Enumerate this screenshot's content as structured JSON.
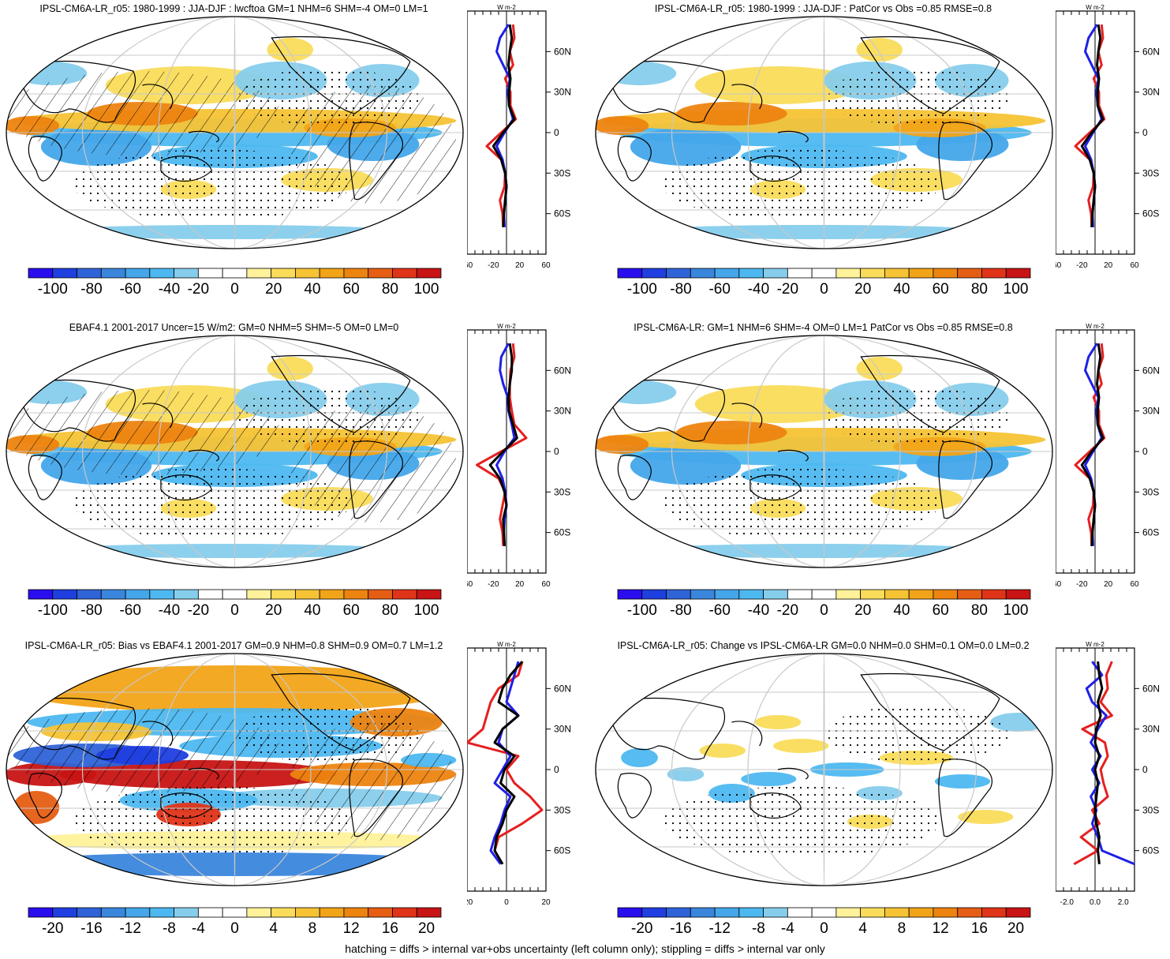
{
  "colors": {
    "palette": [
      "#2a0ef0",
      "#1f3fe0",
      "#2f63d8",
      "#3a86dc",
      "#45a6ea",
      "#4db8f0",
      "#86cdec",
      "#ffffff",
      "#ffffff",
      "#fff29a",
      "#fadc5a",
      "#f6c335",
      "#f2a418",
      "#ed8410",
      "#e55e14",
      "#e03418",
      "#c81414"
    ],
    "model_line": "#000000",
    "obs_line": "#1f1fe6",
    "change_line": "#e61f1f"
  },
  "panels": [
    {
      "title": "IPSL-CM6A-LR_r05: 1980-1999 : JJA-DJF : lwcftoa GM=1 NHM=6 SHM=-4 OM=0 LM=1",
      "map_scheme": "model",
      "hatched": true,
      "cb_labels": [
        "-100",
        "-80",
        "-60",
        "-40",
        "-20",
        "0",
        "20",
        "40",
        "60",
        "80",
        "100"
      ],
      "zonal_ticks": [
        "-60",
        "-20",
        "20",
        "60"
      ],
      "zonal_unit": "W m-2",
      "lat_labels": [
        "60N",
        "30N",
        "0",
        "30S",
        "60S"
      ]
    },
    {
      "title": "IPSL-CM6A-LR_r05: 1980-1999 : JJA-DJF : PatCor vs Obs =0.85 RMSE=0.8",
      "map_scheme": "model",
      "hatched": false,
      "cb_labels": [
        "-100",
        "-80",
        "-60",
        "-40",
        "-20",
        "0",
        "20",
        "40",
        "60",
        "80",
        "100"
      ],
      "zonal_ticks": [
        "-60",
        "-20",
        "20",
        "60"
      ],
      "zonal_unit": "W m-2",
      "lat_labels": [
        "60N",
        "30N",
        "0",
        "30S",
        "60S"
      ]
    },
    {
      "title": "EBAF4.1 2001-2017 Uncer=15 W/m2: GM=0 NHM=5 SHM=-5 OM=0 LM=0",
      "map_scheme": "obs",
      "hatched": true,
      "cb_labels": [
        "-100",
        "-80",
        "-60",
        "-40",
        "-20",
        "0",
        "20",
        "40",
        "60",
        "80",
        "100"
      ],
      "zonal_ticks": [
        "-60",
        "-20",
        "20",
        "60"
      ],
      "zonal_unit": "W m-2",
      "lat_labels": [
        "60N",
        "30N",
        "0",
        "30S",
        "60S"
      ]
    },
    {
      "title": "IPSL-CM6A-LR: GM=1 NHM=6 SHM=-4 OM=0 LM=1 PatCor vs Obs =0.85 RMSE=0.8",
      "map_scheme": "model",
      "hatched": false,
      "cb_labels": [
        "-100",
        "-80",
        "-60",
        "-40",
        "-20",
        "0",
        "20",
        "40",
        "60",
        "80",
        "100"
      ],
      "zonal_ticks": [
        "-60",
        "-20",
        "20",
        "60"
      ],
      "zonal_unit": "W m-2",
      "lat_labels": [
        "60N",
        "30N",
        "0",
        "30S",
        "60S"
      ]
    },
    {
      "title": "IPSL-CM6A-LR_r05: Bias vs EBAF4.1 2001-2017 GM=0.9 NHM=0.8 SHM=0.9 OM=0.7 LM=1.2",
      "map_scheme": "bias",
      "hatched": true,
      "cb_labels": [
        "-20",
        "-16",
        "-12",
        "-8",
        "-4",
        "0",
        "4",
        "8",
        "12",
        "16",
        "20"
      ],
      "zonal_ticks": [
        "-20",
        "0",
        "20"
      ],
      "zonal_unit": "W m-2",
      "lat_labels": [
        "60N",
        "30N",
        "0",
        "30S",
        "60S"
      ]
    },
    {
      "title": "IPSL-CM6A-LR_r05: Change vs IPSL-CM6A-LR GM=0.0 NHM=0.0 SHM=0.1 OM=0.0 LM=0.2",
      "map_scheme": "change",
      "hatched": false,
      "cb_labels": [
        "-20",
        "-16",
        "-12",
        "-8",
        "-4",
        "0",
        "4",
        "8",
        "12",
        "16",
        "20"
      ],
      "zonal_ticks": [
        "-2.0",
        "0.0",
        "2.0"
      ],
      "zonal_unit": "W m-2",
      "lat_labels": [
        "60N",
        "30N",
        "0",
        "30S",
        "60S"
      ]
    }
  ],
  "footer": "hatching = diffs > internal var+obs uncertainty (left column only); stippling = diffs > internal var only",
  "chart_data": [
    {
      "type": "heatmap",
      "title": "IPSL-CM6A-LR_r05: 1980-1999 : JJA-DJF : lwcftoa GM=1 NHM=6 SHM=-4 OM=0 LM=1",
      "colorbar_range": [
        -100,
        100
      ],
      "zonal_mean": {
        "lat": [
          80,
          70,
          60,
          50,
          40,
          30,
          20,
          10,
          0,
          -10,
          -20,
          -30,
          -40,
          -50,
          -60,
          -70
        ],
        "series": [
          {
            "values": [
              5,
              8,
              5,
              3,
              6,
              4,
              4,
              12,
              -5,
              -20,
              -8,
              -2,
              0,
              -2,
              -4,
              -5
            ]
          },
          {
            "values": [
              3,
              -10,
              -15,
              -5,
              5,
              2,
              4,
              10,
              -3,
              -15,
              -6,
              -2,
              0,
              -2,
              -4,
              -3
            ]
          },
          {
            "values": [
              10,
              12,
              5,
              10,
              -2,
              6,
              6,
              14,
              -8,
              -30,
              -8,
              -2,
              -3,
              -10,
              -6,
              -5
            ]
          }
        ]
      }
    },
    {
      "type": "heatmap",
      "title": "IPSL-CM6A-LR_r05: 1980-1999 : JJA-DJF : PatCor vs Obs =0.85 RMSE=0.8",
      "colorbar_range": [
        -100,
        100
      ],
      "zonal_mean": {
        "lat": [
          80,
          70,
          60,
          50,
          40,
          30,
          20,
          10,
          0,
          -10,
          -20,
          -30,
          -40,
          -50,
          -60,
          -70
        ],
        "series": [
          {
            "values": [
              5,
              8,
              5,
              3,
              6,
              4,
              4,
              12,
              -5,
              -20,
              -8,
              -2,
              0,
              -2,
              -4,
              -5
            ]
          },
          {
            "values": [
              3,
              -10,
              -15,
              -5,
              5,
              2,
              4,
              10,
              -3,
              -15,
              -6,
              -2,
              0,
              -2,
              -4,
              -3
            ]
          },
          {
            "values": [
              10,
              12,
              5,
              10,
              -2,
              6,
              6,
              14,
              -8,
              -30,
              -8,
              -2,
              -3,
              -10,
              -6,
              -5
            ]
          }
        ]
      }
    },
    {
      "type": "heatmap",
      "title": "EBAF4.1 2001-2017 Uncer=15 W/m2: GM=0 NHM=5 SHM=-5 OM=0 LM=0",
      "colorbar_range": [
        -100,
        100
      ],
      "zonal_mean": {
        "lat": [
          80,
          70,
          60,
          50,
          40,
          30,
          20,
          10,
          0,
          -10,
          -20,
          -30,
          -40,
          -50,
          -60,
          -70
        ],
        "series": [
          {
            "values": [
              5,
              8,
              8,
              5,
              3,
              4,
              10,
              16,
              -5,
              -25,
              -10,
              -3,
              0,
              -5,
              -4,
              -3
            ]
          },
          {
            "values": [
              3,
              -8,
              -10,
              -5,
              2,
              3,
              8,
              12,
              -3,
              -15,
              -6,
              -2,
              0,
              -3,
              -4,
              -3
            ]
          },
          {
            "values": [
              10,
              12,
              6,
              5,
              5,
              8,
              12,
              30,
              -8,
              -45,
              -12,
              -2,
              -6,
              -10,
              -6,
              -5
            ]
          }
        ]
      }
    },
    {
      "type": "heatmap",
      "title": "IPSL-CM6A-LR: GM=1 NHM=6 SHM=-4 OM=0 LM=1 PatCor vs Obs =0.85 RMSE=0.8",
      "colorbar_range": [
        -100,
        100
      ],
      "zonal_mean": {
        "lat": [
          80,
          70,
          60,
          50,
          40,
          30,
          20,
          10,
          0,
          -10,
          -20,
          -30,
          -40,
          -50,
          -60,
          -70
        ],
        "series": [
          {
            "values": [
              5,
              8,
              5,
              3,
              6,
              4,
              4,
              12,
              -5,
              -20,
              -8,
              -2,
              0,
              -2,
              -4,
              -5
            ]
          },
          {
            "values": [
              3,
              -10,
              -15,
              -5,
              5,
              2,
              4,
              10,
              -3,
              -15,
              -6,
              -2,
              0,
              -2,
              -4,
              -3
            ]
          },
          {
            "values": [
              10,
              12,
              5,
              10,
              -2,
              6,
              6,
              14,
              -8,
              -30,
              -8,
              -2,
              -3,
              -10,
              -6,
              -5
            ]
          }
        ]
      }
    },
    {
      "type": "heatmap",
      "title": "IPSL-CM6A-LR_r05: Bias vs EBAF4.1 2001-2017 GM=0.9 NHM=0.8 SHM=0.9 OM=0.7 LM=1.2",
      "colorbar_range": [
        -20,
        20
      ],
      "zonal_mean": {
        "lat": [
          80,
          70,
          60,
          50,
          40,
          30,
          20,
          10,
          0,
          -10,
          -20,
          -30,
          -40,
          -50,
          -60,
          -70
        ],
        "series": [
          {
            "values": [
              8,
              2,
              -2,
              -4,
              6,
              -2,
              -6,
              4,
              -1,
              -3,
              4,
              0,
              -2,
              -5,
              -6,
              -2
            ]
          },
          {
            "values": [
              6,
              4,
              2,
              0,
              6,
              -2,
              -4,
              2,
              -2,
              -6,
              2,
              -1,
              -3,
              -6,
              -8,
              -3
            ]
          },
          {
            "values": [
              8,
              6,
              -4,
              -8,
              -10,
              -12,
              -20,
              6,
              0,
              4,
              12,
              18,
              8,
              -4,
              -6,
              -2
            ]
          }
        ]
      }
    },
    {
      "type": "heatmap",
      "title": "IPSL-CM6A-LR_r05: Change vs IPSL-CM6A-LR GM=0.0 NHM=0.0 SHM=0.1 OM=0.0 LM=0.2",
      "colorbar_range": [
        -20,
        20
      ],
      "zonal_mean": {
        "lat": [
          80,
          70,
          60,
          50,
          40,
          30,
          20,
          10,
          0,
          -10,
          -20,
          -30,
          -40,
          -50,
          -60,
          -70
        ],
        "series": [
          {
            "values": [
              0.2,
              0.3,
              0.5,
              0.2,
              0.4,
              0.1,
              0.0,
              0.3,
              0.0,
              0.2,
              0.1,
              0.0,
              0.1,
              0.3,
              0.2,
              0.3
            ]
          },
          {
            "values": [
              -0.2,
              0.5,
              -0.6,
              -0.2,
              0.8,
              0.2,
              -0.3,
              0.4,
              -0.2,
              0.3,
              -0.3,
              0.1,
              -0.2,
              0.2,
              0.5,
              2.8
            ]
          },
          {
            "values": [
              1.2,
              0.8,
              0.9,
              0.4,
              1.2,
              -0.9,
              0.7,
              0.9,
              0.4,
              0.6,
              0.9,
              -0.2,
              0.3,
              -1.0,
              0.2,
              -1.5
            ]
          }
        ]
      }
    }
  ]
}
